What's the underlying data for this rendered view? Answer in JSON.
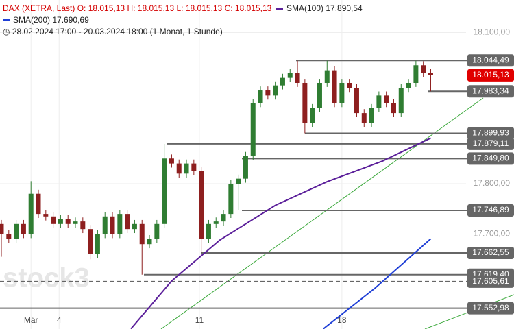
{
  "chart_data": {
    "type": "candlestick",
    "header": {
      "symbol": "DAX (XETRA, Last)",
      "open": "O: 18.015,13",
      "high": "H: 18.015,13",
      "low": "L: 18.015,13",
      "close": "C: 18.015,13",
      "range": "28.02.2024 17:00 - 20.03.2024 18:00",
      "period": "(1 Monat, 1 Stunde)"
    },
    "watermark": "stock3",
    "xlim": [
      -0.37,
      138.5
    ],
    "ylim": [
      17511.6,
      18164.6
    ],
    "xticks": [
      {
        "value": 8,
        "label": "Mär"
      },
      {
        "value": 15.6,
        "label": "4"
      },
      {
        "value": 53.5,
        "label": "11"
      },
      {
        "value": 92,
        "label": "18"
      }
    ],
    "yticks": [
      {
        "value": 18100,
        "label": "18.100,00"
      },
      {
        "value": 17800,
        "label": "17.800,00"
      },
      {
        "value": 17700,
        "label": "17.700,00"
      }
    ],
    "up_color": "#2f7d32",
    "down_color": "#8e1f1f",
    "x": [
      0,
      2,
      4,
      6,
      8,
      10,
      12,
      14,
      16,
      18,
      20,
      22,
      24,
      26,
      28,
      30,
      32,
      34,
      36,
      38,
      40,
      42,
      44,
      46,
      48,
      50,
      52,
      54,
      56,
      58,
      60,
      62,
      64,
      66,
      68,
      70,
      72,
      74,
      76,
      78,
      80,
      82,
      84,
      86,
      88,
      90,
      92,
      94,
      96,
      98,
      100,
      102,
      104,
      106,
      108,
      110,
      112,
      114,
      116
    ],
    "open": [
      17720,
      17700,
      17690,
      17720,
      17700,
      17780,
      17740,
      17735,
      17720,
      17730,
      17720,
      17725,
      17710,
      17660,
      17700,
      17735,
      17700,
      17740,
      17710,
      17720,
      17680,
      17690,
      17720,
      17850,
      17840,
      17820,
      17840,
      17825,
      17690,
      17720,
      17725,
      17740,
      17800,
      17810,
      17855,
      17960,
      17985,
      17975,
      17995,
      18010,
      18020,
      18000,
      17920,
      17950,
      18000,
      18025,
      17960,
      18000,
      17990,
      17940,
      17920,
      17950,
      17975,
      17960,
      17940,
      17990,
      18000,
      18035,
      18020
    ],
    "high": [
      17728,
      17708,
      17728,
      17728,
      17805,
      17788,
      17748,
      17743,
      17738,
      17738,
      17733,
      17733,
      17718,
      17708,
      17743,
      17743,
      17748,
      17748,
      17728,
      17728,
      17698,
      17728,
      17879,
      17858,
      17848,
      17848,
      17848,
      17833,
      17728,
      17733,
      17748,
      17808,
      17818,
      17863,
      17968,
      17993,
      17993,
      18003,
      18018,
      18028,
      18044,
      18008,
      17958,
      18008,
      18044,
      18033,
      18008,
      18008,
      17998,
      17948,
      17958,
      17983,
      17983,
      17968,
      17998,
      18008,
      18044,
      18043,
      18028
    ],
    "low": [
      17655,
      17682,
      17682,
      17692,
      17692,
      17732,
      17727,
      17712,
      17712,
      17712,
      17712,
      17702,
      17650,
      17652,
      17692,
      17692,
      17692,
      17702,
      17702,
      17619.4,
      17672,
      17682,
      17712,
      17832,
      17812,
      17812,
      17817,
      17662.55,
      17682,
      17712,
      17717,
      17732,
      17746.89,
      17802,
      17847,
      17952,
      17967,
      17967,
      17987,
      18002,
      17992,
      17899.93,
      17912,
      17942,
      17992,
      17952,
      17952,
      17982,
      17932,
      17912,
      17912,
      17942,
      17952,
      17932,
      17932,
      17982,
      17992,
      18012,
      17983.34
    ],
    "close": [
      17700,
      17690,
      17720,
      17700,
      17780,
      17740,
      17735,
      17720,
      17730,
      17720,
      17725,
      17710,
      17660,
      17700,
      17735,
      17700,
      17740,
      17710,
      17720,
      17680,
      17690,
      17720,
      17850,
      17840,
      17820,
      17840,
      17825,
      17690,
      17720,
      17725,
      17740,
      17800,
      17810,
      17855,
      17960,
      17985,
      17975,
      17995,
      18010,
      18020,
      18000,
      17920,
      17950,
      18000,
      18025,
      17960,
      18000,
      17990,
      17940,
      17920,
      17950,
      17975,
      17960,
      17940,
      17990,
      18000,
      18035,
      18020,
      18015
    ],
    "series": [
      {
        "name": "SMA(100)",
        "value_label": "17.890,54",
        "color": "#5b1f9a",
        "x": [
          35,
          46,
          59,
          74,
          88,
          103,
          116
        ],
        "values": [
          17512,
          17607,
          17688,
          17757,
          17804,
          17845,
          17890.54
        ]
      },
      {
        "name": "SMA(200)",
        "value_label": "17.690,69",
        "color": "#1f3fd6",
        "x": [
          87,
          101,
          116
        ],
        "values": [
          17512,
          17593,
          17690.69
        ]
      }
    ],
    "levels": [
      {
        "value": 18044.49,
        "label": "18.044,49"
      },
      {
        "value": 18015.13,
        "label": "18.015,13",
        "color": "#e00000"
      },
      {
        "value": 17983.34,
        "label": "17.983,34"
      },
      {
        "value": 17899.93,
        "label": "17.899,93"
      },
      {
        "value": 17879.11,
        "label": "17.879,11"
      },
      {
        "value": 17849.8,
        "label": "17.849,80"
      },
      {
        "value": 17746.89,
        "label": "17.746,89"
      },
      {
        "value": 17662.55,
        "label": "17.662,55"
      },
      {
        "value": 17619.4,
        "label": "17.619,40"
      },
      {
        "value": 17605.61,
        "label": "17.605,61"
      },
      {
        "value": 17552.98,
        "label": "17.552,98"
      }
    ]
  }
}
